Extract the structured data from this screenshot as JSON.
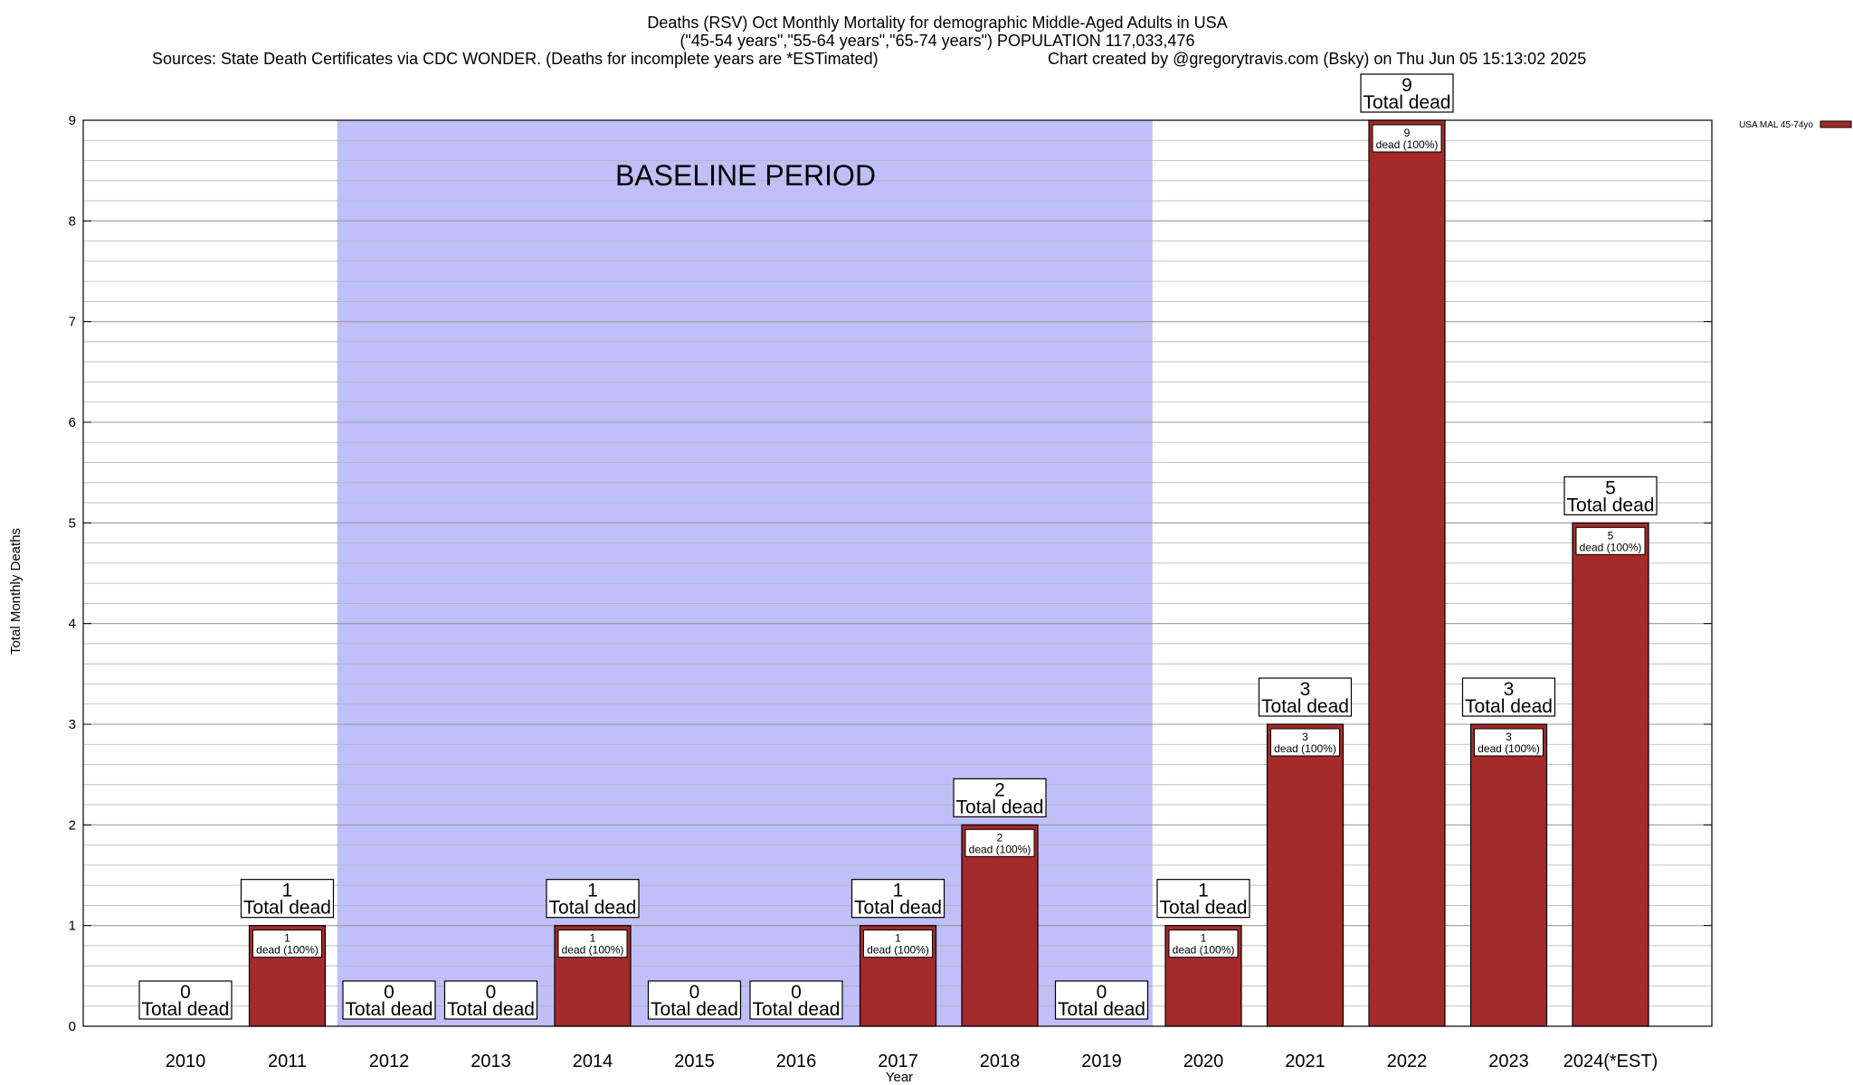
{
  "title": {
    "line1": "Deaths (RSV) Oct Monthly Mortality for demographic Middle-Aged Adults in USA",
    "line2": "(\"45-54 years\",\"55-64 years\",\"65-74 years\") POPULATION 117,033,476",
    "line3_left": "Sources: State Death Certificates via CDC WONDER. (Deaths for incomplete years are *ESTimated)",
    "line3_right": "Chart created by @gregorytravis.com (Bsky) on Thu Jun 05 15:13:02 2025"
  },
  "colors": {
    "bar": "#a52a2a",
    "baseline_shade": "#bfbffa",
    "grid": "#b4b4b4"
  },
  "chart_data": {
    "type": "bar",
    "title": "Deaths (RSV) Oct Monthly Mortality for demographic Middle-Aged Adults in USA",
    "xlabel": "Year",
    "ylabel": "Total Monthly Deaths",
    "ylim": [
      0,
      9
    ],
    "yticks": [
      "0",
      "1",
      "2",
      "3",
      "4",
      "5",
      "6",
      "7",
      "8",
      "9"
    ],
    "grid": true,
    "legend_position": "top-right",
    "categories": [
      "2010",
      "2011",
      "2012",
      "2013",
      "2014",
      "2015",
      "2016",
      "2017",
      "2018",
      "2019",
      "2020",
      "2021",
      "2022",
      "2023",
      "2024(*EST)"
    ],
    "series": [
      {
        "name": "USA MAL 45-74yo",
        "values": [
          0,
          1,
          0,
          0,
          1,
          0,
          0,
          1,
          2,
          0,
          1,
          3,
          9,
          3,
          5
        ]
      }
    ],
    "total_labels": [
      "0",
      "1",
      "0",
      "0",
      "1",
      "0",
      "0",
      "1",
      "2",
      "0",
      "1",
      "3",
      "9",
      "3",
      "5"
    ],
    "total_label_text": "Total dead",
    "bar_labels": [
      "",
      "1",
      "",
      "",
      "1",
      "",
      "",
      "1",
      "2",
      "",
      "1",
      "3",
      "9",
      "3",
      "5"
    ],
    "bar_label_text": "dead (100%)",
    "baseline_period": {
      "label": "BASELINE PERIOD",
      "start": "2012",
      "end": "2019"
    }
  }
}
